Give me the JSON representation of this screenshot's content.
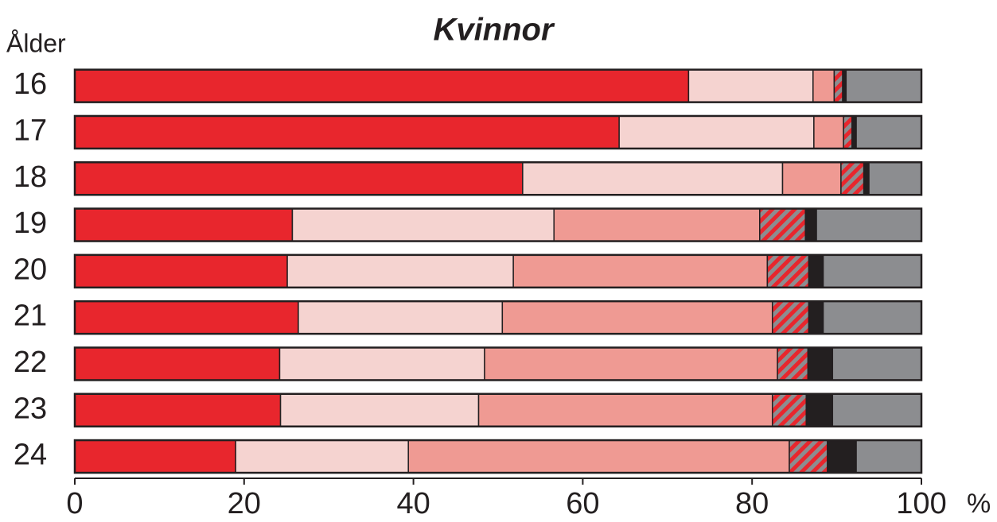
{
  "chart_data": {
    "type": "stacked_bar_horizontal",
    "title": "Kvinnor",
    "y_label": "Ålder",
    "x_label": "%",
    "categories": [
      "16",
      "17",
      "18",
      "19",
      "20",
      "21",
      "22",
      "23",
      "24"
    ],
    "series": [
      {
        "color": "#e8262d",
        "values": [
          72.5,
          64.3,
          52.9,
          25.7,
          25.1,
          26.4,
          24.2,
          24.3,
          19.0
        ]
      },
      {
        "color": "#f5d3d0",
        "values": [
          14.7,
          23.0,
          30.7,
          30.9,
          26.7,
          24.1,
          24.2,
          23.4,
          20.4
        ]
      },
      {
        "color": "#ef9a93",
        "values": [
          2.5,
          3.5,
          6.9,
          24.3,
          30.0,
          31.9,
          34.6,
          34.7,
          45.0
        ]
      },
      {
        "color": "#8c8d90",
        "hatch_color": "#e8262d",
        "values": [
          1.0,
          1.0,
          2.7,
          5.4,
          4.9,
          4.3,
          3.6,
          4.0,
          4.5
        ]
      },
      {
        "color": "#231f20",
        "values": [
          0.4,
          0.5,
          0.6,
          1.3,
          1.7,
          1.7,
          2.9,
          3.1,
          3.4
        ]
      },
      {
        "color": "#8c8d90",
        "values": [
          8.9,
          7.7,
          6.2,
          12.4,
          11.6,
          11.6,
          10.5,
          10.5,
          7.7
        ]
      }
    ],
    "xlim": [
      0,
      100
    ],
    "xticks": [
      0,
      20,
      40,
      60,
      80,
      100
    ]
  }
}
